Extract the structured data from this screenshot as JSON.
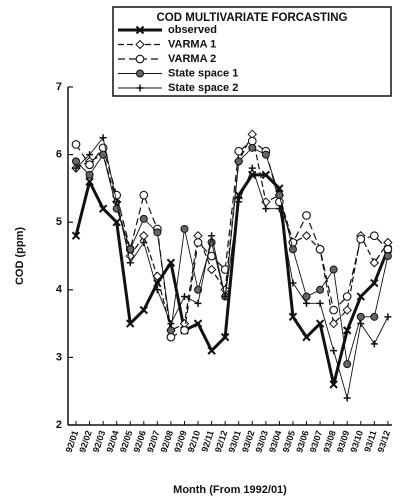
{
  "chart_data": {
    "type": "line",
    "title": "COD MULTIVARIATE FORCASTING",
    "x_label": "Month (From 1992/01)",
    "y_label": "COD (ppm)",
    "categories": [
      "92/01",
      "92/02",
      "92/03",
      "92/04",
      "92/05",
      "92/06",
      "92/07",
      "92/08",
      "92/09",
      "92/10",
      "92/11",
      "92/12",
      "93/01",
      "93/02",
      "93/03",
      "93/04",
      "93/05",
      "93/06",
      "93/07",
      "93/08",
      "93/09",
      "93/10",
      "93/11",
      "93/12"
    ],
    "ylim": [
      2,
      7
    ],
    "yticks": [
      2,
      3,
      4,
      5,
      6,
      7
    ],
    "series": [
      {
        "name": "observed",
        "color": "#111111",
        "values": [
          4.8,
          5.6,
          5.2,
          5.0,
          3.5,
          3.7,
          4.1,
          4.4,
          3.4,
          3.5,
          3.1,
          3.3,
          5.4,
          5.7,
          5.7,
          5.5,
          3.6,
          3.3,
          3.5,
          2.6,
          3.4,
          3.9,
          4.1,
          4.6
        ]
      },
      {
        "name": "VARMA 1",
        "color": "#111111",
        "values": [
          5.8,
          5.9,
          6.0,
          5.3,
          4.5,
          4.8,
          4.2,
          3.4,
          3.5,
          4.8,
          4.3,
          4.0,
          5.9,
          6.3,
          5.3,
          5.4,
          4.7,
          4.8,
          4.6,
          3.5,
          3.7,
          4.8,
          4.4,
          4.7
        ]
      },
      {
        "name": "VARMA 2",
        "color": "#111111",
        "values": [
          6.15,
          5.85,
          6.1,
          5.4,
          4.6,
          5.4,
          4.9,
          3.3,
          3.4,
          4.7,
          4.5,
          4.3,
          6.05,
          6.2,
          6.05,
          5.3,
          4.7,
          5.1,
          4.6,
          3.7,
          3.9,
          4.75,
          4.8,
          4.6
        ]
      },
      {
        "name": "State space 1",
        "color": "#111111",
        "values": [
          5.9,
          5.7,
          6.0,
          5.2,
          4.6,
          5.05,
          4.85,
          3.4,
          4.9,
          4.0,
          4.7,
          3.9,
          5.9,
          6.1,
          6.0,
          5.4,
          4.6,
          3.9,
          4.0,
          4.3,
          2.9,
          3.6,
          3.6,
          4.5
        ]
      },
      {
        "name": "State space 2",
        "color": "#111111",
        "values": [
          5.8,
          6.0,
          6.25,
          5.3,
          4.4,
          4.7,
          4.0,
          3.5,
          3.9,
          3.8,
          4.8,
          3.9,
          5.3,
          5.8,
          5.2,
          5.2,
          4.1,
          3.8,
          3.8,
          3.1,
          2.4,
          3.5,
          3.2,
          3.6
        ]
      }
    ]
  }
}
